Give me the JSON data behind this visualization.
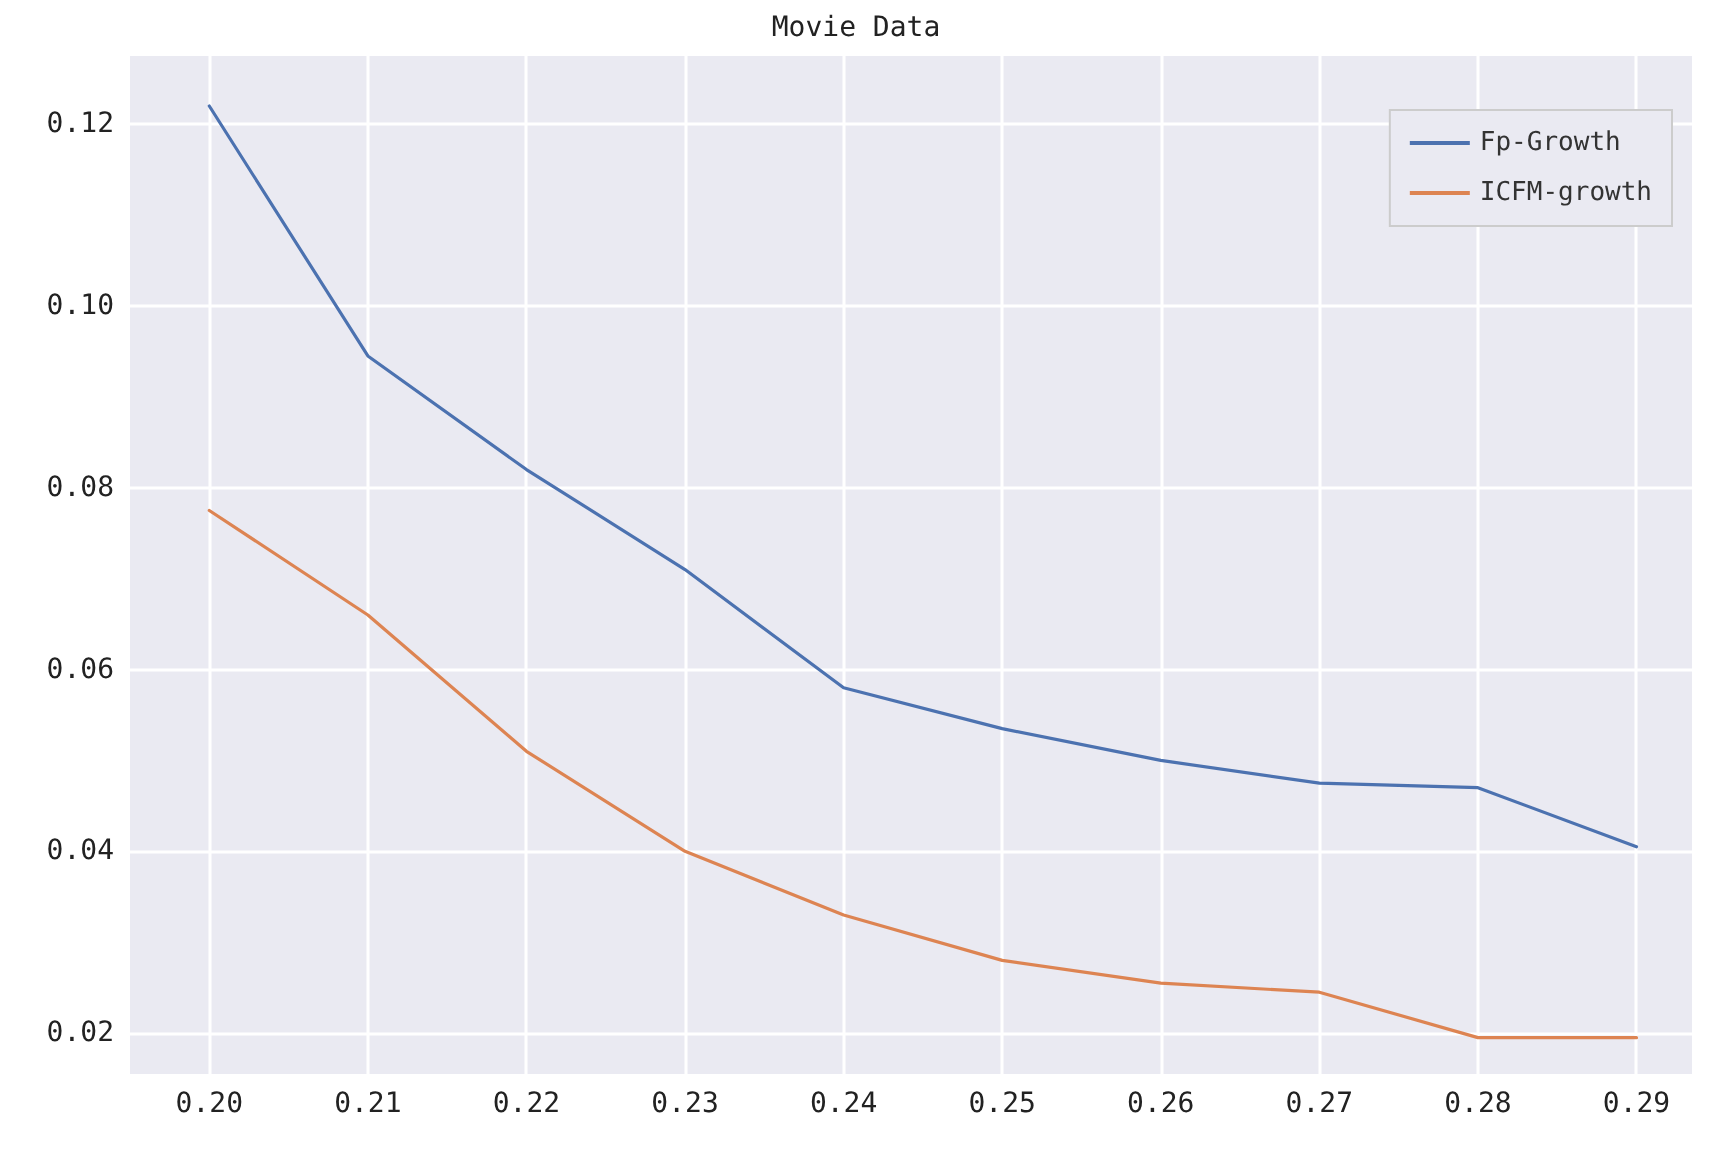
{
  "chart_data": {
    "type": "line",
    "title": "Movie Data",
    "x": [
      0.2,
      0.21,
      0.22,
      0.23,
      0.24,
      0.25,
      0.26,
      0.27,
      0.28,
      0.29
    ],
    "series": [
      {
        "name": "Fp-Growth",
        "color": "#4c72b0",
        "values": [
          0.122,
          0.0945,
          0.082,
          0.071,
          0.058,
          0.0535,
          0.05,
          0.0475,
          0.047,
          0.0405
        ]
      },
      {
        "name": "ICFM-growth",
        "color": "#dd8452",
        "values": [
          0.0775,
          0.066,
          0.051,
          0.04,
          0.033,
          0.028,
          0.0255,
          0.0245,
          0.0195,
          0.0195
        ]
      }
    ],
    "xlim": [
      0.195,
      0.2935
    ],
    "ylim": [
      0.0155,
      0.1275
    ],
    "xticks": [
      {
        "value": 0.2,
        "label": "0.20"
      },
      {
        "value": 0.21,
        "label": "0.21"
      },
      {
        "value": 0.22,
        "label": "0.22"
      },
      {
        "value": 0.23,
        "label": "0.23"
      },
      {
        "value": 0.24,
        "label": "0.24"
      },
      {
        "value": 0.25,
        "label": "0.25"
      },
      {
        "value": 0.26,
        "label": "0.26"
      },
      {
        "value": 0.27,
        "label": "0.27"
      },
      {
        "value": 0.28,
        "label": "0.28"
      },
      {
        "value": 0.29,
        "label": "0.29"
      }
    ],
    "yticks": [
      {
        "value": 0.02,
        "label": "0.02"
      },
      {
        "value": 0.04,
        "label": "0.04"
      },
      {
        "value": 0.06,
        "label": "0.06"
      },
      {
        "value": 0.08,
        "label": "0.08"
      },
      {
        "value": 0.1,
        "label": "0.10"
      },
      {
        "value": 0.12,
        "label": "0.12"
      }
    ],
    "grid": true,
    "legend": "top right",
    "marker": "none",
    "line_style": "solid"
  }
}
